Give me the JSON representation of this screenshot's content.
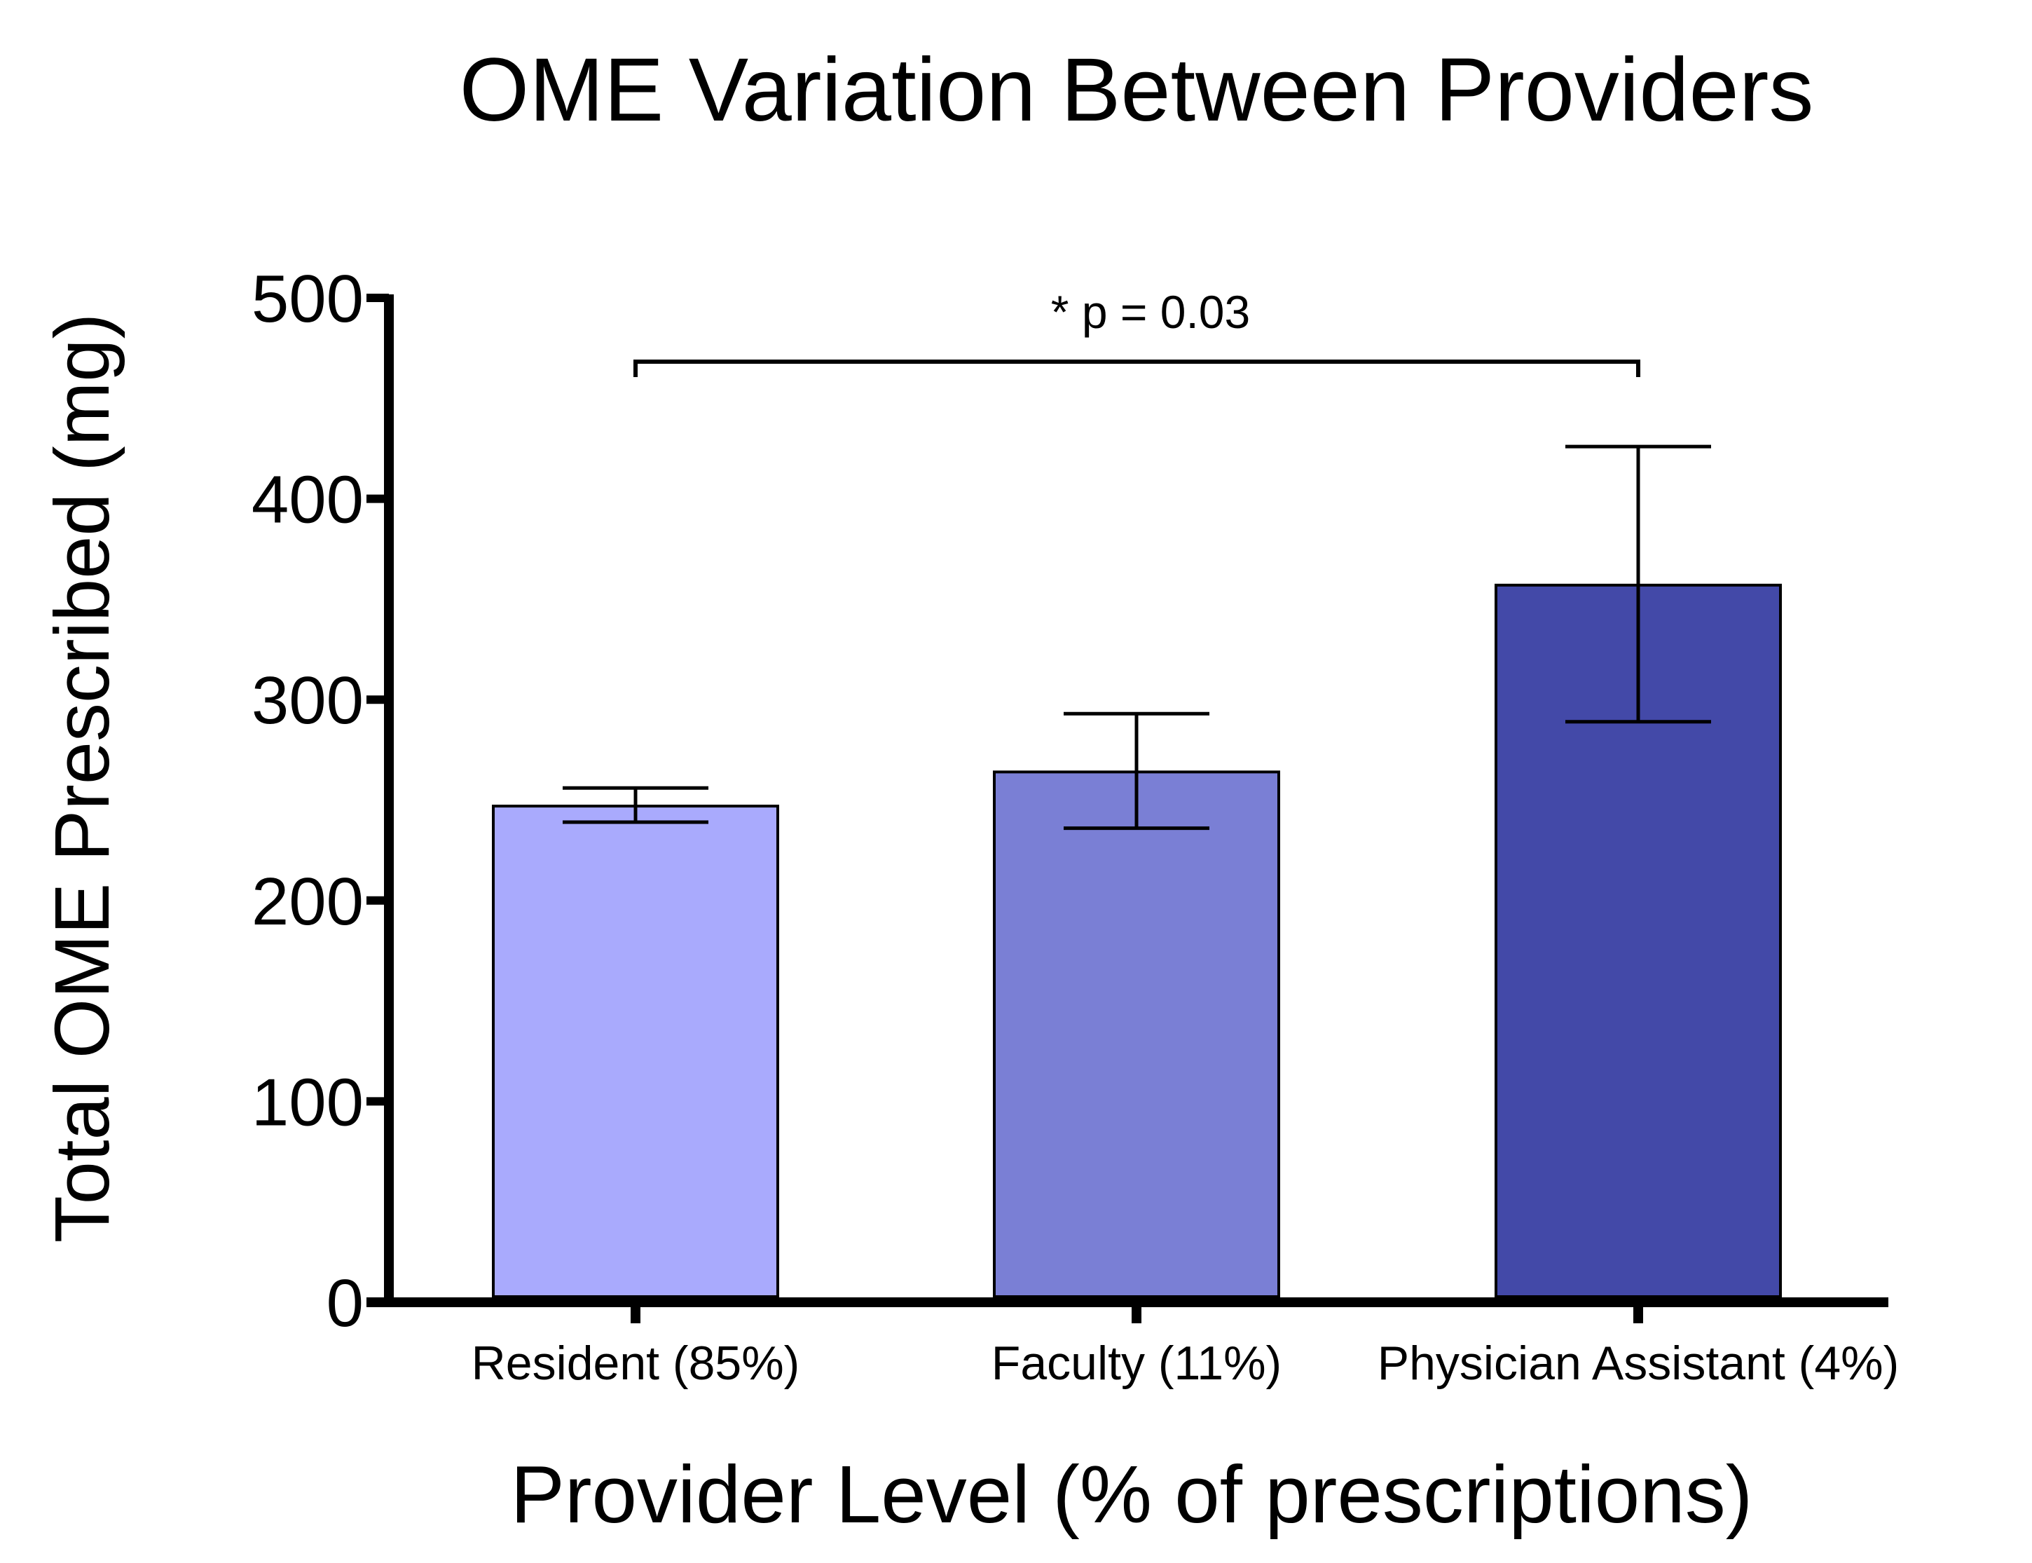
{
  "chart_data": {
    "type": "bar",
    "title": "OME Variation Between Providers",
    "xlabel": "Provider Level (% of prescriptions)",
    "ylabel": "Total OME Prescribed (mg)",
    "ylim": [
      0,
      500
    ],
    "yticks": [
      0,
      100,
      200,
      300,
      400,
      500
    ],
    "categories": [
      "Resident (85%)",
      "Faculty (11%)",
      "Physician Assistant (4%)"
    ],
    "values": [
      247,
      264,
      357
    ],
    "error_low": [
      239,
      236,
      289
    ],
    "error_high": [
      256,
      293,
      426
    ],
    "bar_colors": [
      "#a9aafd",
      "#7a7fd5",
      "#4349a8"
    ],
    "significance": {
      "label": "* p = 0.03",
      "from_index": 0,
      "to_index": 2
    },
    "grid": false,
    "legend": "none"
  }
}
